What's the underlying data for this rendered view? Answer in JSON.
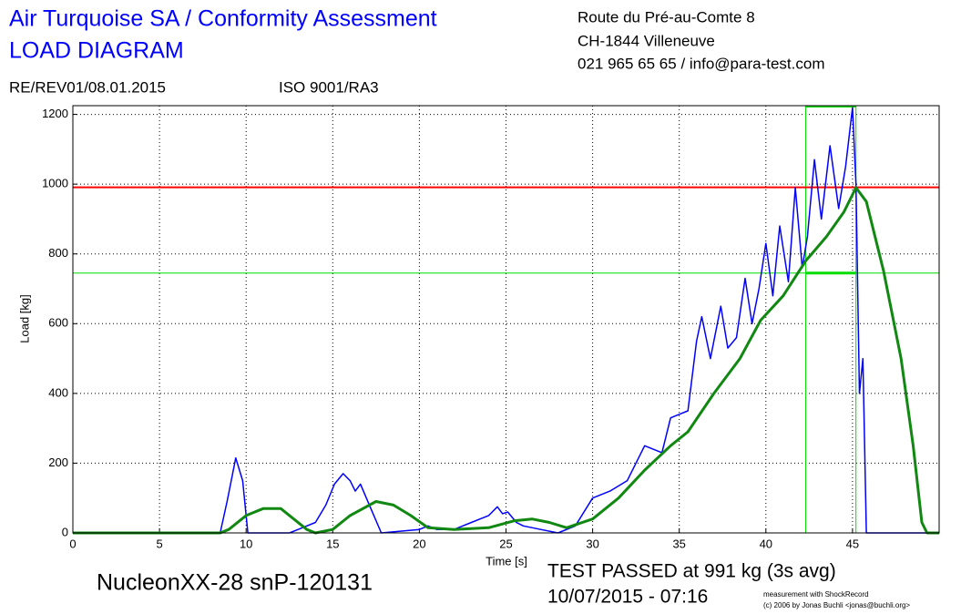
{
  "chart_data": {
    "type": "line",
    "title": "Air Turquoise SA / Conformity Assessment",
    "subtitle": "LOAD DIAGRAM",
    "address": [
      "Route du Pré-au-Comte 8",
      "CH-1844 Villeneuve",
      "021 965 65 65 / info@para-test.com"
    ],
    "revision": "RE/REV01/08.01.2015",
    "standard": "ISO 9001/RA3",
    "x_label": "Time [s]",
    "y_label": "Load [kg]",
    "device": "NucleonXX-28 snP-120131",
    "result": "TEST PASSED at 991 kg (3s avg)",
    "datetime": "10/07/2015 - 07:16",
    "credit": [
      "measurement with ShockRecord",
      "(c) 2006 by Jonas Buchli <jonas@buchli.org>"
    ],
    "xlim": [
      0,
      50
    ],
    "ylim": [
      0,
      1225
    ],
    "xticks": [
      0,
      5,
      10,
      15,
      20,
      25,
      30,
      35,
      40,
      45
    ],
    "yticks": [
      0,
      200,
      400,
      600,
      800,
      1000,
      1200
    ],
    "grid": true,
    "limit_line": {
      "value": 991,
      "color": "#ff0000"
    },
    "reference_lines": {
      "color": "#00dd00",
      "x": [
        42.3,
        45.2
      ],
      "y": 745
    },
    "series": [
      {
        "color": "#0000ff",
        "x": [
          0,
          8.5,
          8.9,
          9.4,
          9.8,
          10.1,
          12.5,
          13,
          14,
          14.6,
          15.1,
          15.6,
          16,
          16.3,
          16.6,
          17.2,
          17.8,
          20,
          20.5,
          21,
          22,
          23,
          23.5,
          24,
          24.5,
          24.8,
          25.1,
          25.6,
          26,
          27,
          28,
          29,
          30,
          31,
          32,
          33,
          34,
          34.5,
          35,
          35.5,
          36,
          36.3,
          36.8,
          37.4,
          37.8,
          38.3,
          38.8,
          39.2,
          39.6,
          40,
          40.4,
          40.8,
          41.3,
          41.7,
          42.1,
          42.4,
          42.8,
          43.2,
          43.7,
          44.2,
          44.6,
          45,
          45.2,
          45.4,
          45.6,
          45.8,
          50
        ],
        "values": [
          0,
          0,
          90,
          215,
          150,
          0,
          0,
          10,
          30,
          80,
          140,
          170,
          150,
          120,
          140,
          70,
          0,
          10,
          20,
          10,
          10,
          30,
          40,
          50,
          75,
          55,
          60,
          30,
          20,
          10,
          0,
          20,
          100,
          120,
          150,
          250,
          230,
          330,
          340,
          350,
          550,
          620,
          500,
          650,
          530,
          560,
          730,
          600,
          700,
          830,
          680,
          880,
          720,
          990,
          760,
          850,
          1070,
          900,
          1110,
          930,
          1050,
          1220,
          1000,
          400,
          500,
          0,
          0
        ]
      },
      {
        "color": "#118811",
        "x": [
          0,
          8.5,
          9,
          10,
          11,
          12,
          12.5,
          13.5,
          14,
          15,
          16,
          17.5,
          18.5,
          19.5,
          20.5,
          22,
          24,
          25.5,
          26.5,
          27.5,
          28.5,
          30,
          31.5,
          33,
          34.5,
          35.5,
          37,
          38.5,
          39.7,
          41,
          42.3,
          43.5,
          44.5,
          45.2,
          45.8,
          46.8,
          47.8,
          48.5,
          49,
          49.3,
          50
        ],
        "values": [
          0,
          0,
          10,
          50,
          70,
          70,
          50,
          10,
          0,
          10,
          50,
          90,
          80,
          50,
          15,
          10,
          15,
          35,
          40,
          30,
          15,
          40,
          100,
          180,
          250,
          290,
          400,
          500,
          610,
          680,
          780,
          850,
          920,
          990,
          950,
          750,
          500,
          250,
          30,
          0,
          0
        ]
      }
    ]
  }
}
